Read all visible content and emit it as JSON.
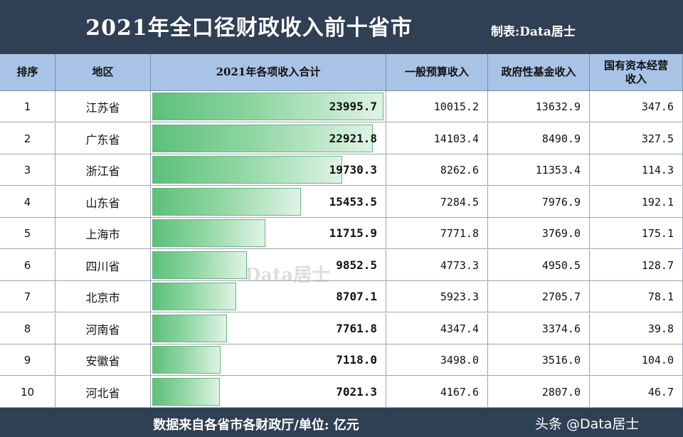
{
  "title": "2021年全口径财政收入前十省市",
  "credit": "制表:Data居士",
  "watermark": "Data居士",
  "headers": {
    "rank": "排序",
    "region": "地区",
    "total": "2021年各项收入合计",
    "general": "一般预算收入",
    "fund": "政府性基金收入",
    "state": "国有资本经营收入"
  },
  "footer": "数据来自各省市各财政厅/单位: 亿元",
  "source_tag": "头条 @Data居士",
  "colors": {
    "bar_start": "#5cc07a",
    "bar_end": "#dff3e5",
    "header_bg": "#a9c3e6",
    "frame": "#2f3f54"
  },
  "chart_data": {
    "type": "table",
    "max_total": 23995.7,
    "rows": [
      {
        "rank": "1",
        "region": "江苏省",
        "total": "23995.7",
        "total_value": 23995.7,
        "general": "10015.2",
        "fund": "13632.9",
        "state": "347.6"
      },
      {
        "rank": "2",
        "region": "广东省",
        "total": "22921.8",
        "total_value": 22921.8,
        "general": "14103.4",
        "fund": "8490.9",
        "state": "327.5"
      },
      {
        "rank": "3",
        "region": "浙江省",
        "total": "19730.3",
        "total_value": 19730.3,
        "general": "8262.6",
        "fund": "11353.4",
        "state": "114.3"
      },
      {
        "rank": "4",
        "region": "山东省",
        "total": "15453.5",
        "total_value": 15453.5,
        "general": "7284.5",
        "fund": "7976.9",
        "state": "192.1"
      },
      {
        "rank": "5",
        "region": "上海市",
        "total": "11715.9",
        "total_value": 11715.9,
        "general": "7771.8",
        "fund": "3769.0",
        "state": "175.1"
      },
      {
        "rank": "6",
        "region": "四川省",
        "total": "9852.5",
        "total_value": 9852.5,
        "general": "4773.3",
        "fund": "4950.5",
        "state": "128.7"
      },
      {
        "rank": "7",
        "region": "北京市",
        "total": "8707.1",
        "total_value": 8707.1,
        "general": "5923.3",
        "fund": "2705.7",
        "state": "78.1"
      },
      {
        "rank": "8",
        "region": "河南省",
        "total": "7761.8",
        "total_value": 7761.8,
        "general": "4347.4",
        "fund": "3374.6",
        "state": "39.8"
      },
      {
        "rank": "9",
        "region": "安徽省",
        "total": "7118.0",
        "total_value": 7118.0,
        "general": "3498.0",
        "fund": "3516.0",
        "state": "104.0"
      },
      {
        "rank": "10",
        "region": "河北省",
        "total": "7021.3",
        "total_value": 7021.3,
        "general": "4167.6",
        "fund": "2807.0",
        "state": "46.7"
      }
    ]
  }
}
